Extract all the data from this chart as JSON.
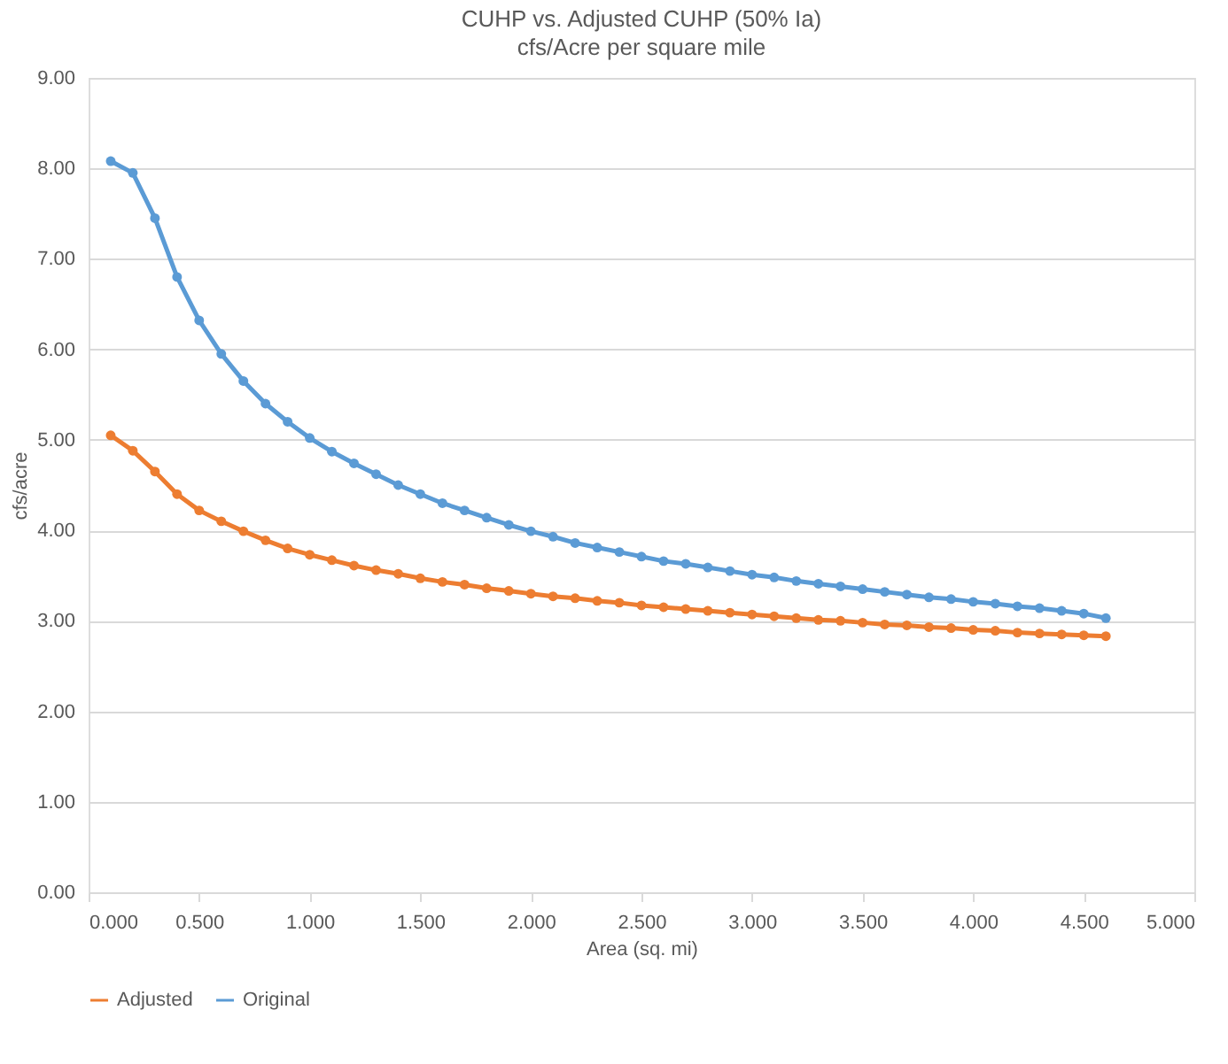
{
  "chart_data": {
    "type": "line",
    "title": "CUHP vs. Adjusted CUHP (50% Ia)",
    "subtitle": "cfs/Acre per square mile",
    "xlabel": "Area (sq. mi)",
    "ylabel": "cfs/acre",
    "x": [
      0.1,
      0.2,
      0.3,
      0.4,
      0.5,
      0.6,
      0.7,
      0.8,
      0.9,
      1.0,
      1.1,
      1.2,
      1.3,
      1.4,
      1.5,
      1.6,
      1.7,
      1.8,
      1.9,
      2.0,
      2.1,
      2.2,
      2.3,
      2.4,
      2.5,
      2.6,
      2.7,
      2.8,
      2.9,
      3.0,
      3.1,
      3.2,
      3.3,
      3.4,
      3.5,
      3.6,
      3.7,
      3.8,
      3.9,
      4.0,
      4.1,
      4.2,
      4.3,
      4.4,
      4.5,
      4.6
    ],
    "series": [
      {
        "name": "Adjusted",
        "color": "#ed7d31",
        "values": [
          5.05,
          4.88,
          4.65,
          4.4,
          4.22,
          4.1,
          3.99,
          3.89,
          3.8,
          3.73,
          3.67,
          3.61,
          3.56,
          3.52,
          3.47,
          3.43,
          3.4,
          3.36,
          3.33,
          3.3,
          3.27,
          3.25,
          3.22,
          3.2,
          3.17,
          3.15,
          3.13,
          3.11,
          3.09,
          3.07,
          3.05,
          3.03,
          3.01,
          3.0,
          2.98,
          2.96,
          2.95,
          2.93,
          2.92,
          2.9,
          2.89,
          2.87,
          2.86,
          2.85,
          2.84,
          2.83
        ]
      },
      {
        "name": "Original",
        "color": "#5b9bd5",
        "values": [
          8.08,
          7.95,
          7.45,
          6.8,
          6.32,
          5.95,
          5.65,
          5.4,
          5.2,
          5.02,
          4.87,
          4.74,
          4.62,
          4.5,
          4.4,
          4.3,
          4.22,
          4.14,
          4.06,
          3.99,
          3.93,
          3.86,
          3.81,
          3.76,
          3.71,
          3.66,
          3.63,
          3.59,
          3.55,
          3.51,
          3.48,
          3.44,
          3.41,
          3.38,
          3.35,
          3.32,
          3.29,
          3.26,
          3.24,
          3.21,
          3.19,
          3.16,
          3.14,
          3.11,
          3.08,
          3.03
        ]
      }
    ],
    "xlim": [
      0,
      5
    ],
    "ylim": [
      0,
      9
    ],
    "xticks": [
      {
        "value": 0,
        "label": "0.000"
      },
      {
        "value": 0.5,
        "label": "0.500"
      },
      {
        "value": 1,
        "label": "1.000"
      },
      {
        "value": 1.5,
        "label": "1.500"
      },
      {
        "value": 2,
        "label": "2.000"
      },
      {
        "value": 2.5,
        "label": "2.500"
      },
      {
        "value": 3,
        "label": "3.000"
      },
      {
        "value": 3.5,
        "label": "3.500"
      },
      {
        "value": 4,
        "label": "4.000"
      },
      {
        "value": 4.5,
        "label": "4.500"
      },
      {
        "value": 5,
        "label": "5.000"
      }
    ],
    "yticks": [
      {
        "value": 0,
        "label": "0.00"
      },
      {
        "value": 1,
        "label": "1.00"
      },
      {
        "value": 2,
        "label": "2.00"
      },
      {
        "value": 3,
        "label": "3.00"
      },
      {
        "value": 4,
        "label": "4.00"
      },
      {
        "value": 5,
        "label": "5.00"
      },
      {
        "value": 6,
        "label": "6.00"
      },
      {
        "value": 7,
        "label": "7.00"
      },
      {
        "value": 8,
        "label": "8.00"
      },
      {
        "value": 9,
        "label": "9.00"
      }
    ],
    "grid": "y",
    "legend": "bottom",
    "marker": "circle",
    "line_style": "solid"
  }
}
